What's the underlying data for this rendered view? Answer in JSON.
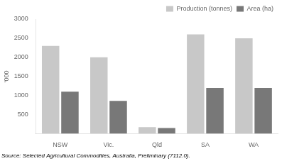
{
  "chart_data": {
    "type": "bar",
    "ylabel": "'000",
    "annotations": [
      "Source: Selected Agricultural Commodities, Australia, Preliminary (7112.0)."
    ],
    "categories": [
      "NSW",
      "Vic.",
      "Qld",
      "SA",
      "WA"
    ],
    "series": [
      {
        "name": "Production (tonnes)",
        "color": "#c8c8c8",
        "values": [
          2300,
          2000,
          175,
          2600,
          2500
        ]
      },
      {
        "name": "Area (ha)",
        "color": "#787878",
        "values": [
          1100,
          860,
          150,
          1200,
          1200
        ]
      }
    ],
    "ylim": [
      0,
      3000
    ],
    "yticks": [
      500,
      1000,
      1500,
      2000,
      2500,
      3000
    ],
    "grid": false,
    "legend": "upper right"
  }
}
